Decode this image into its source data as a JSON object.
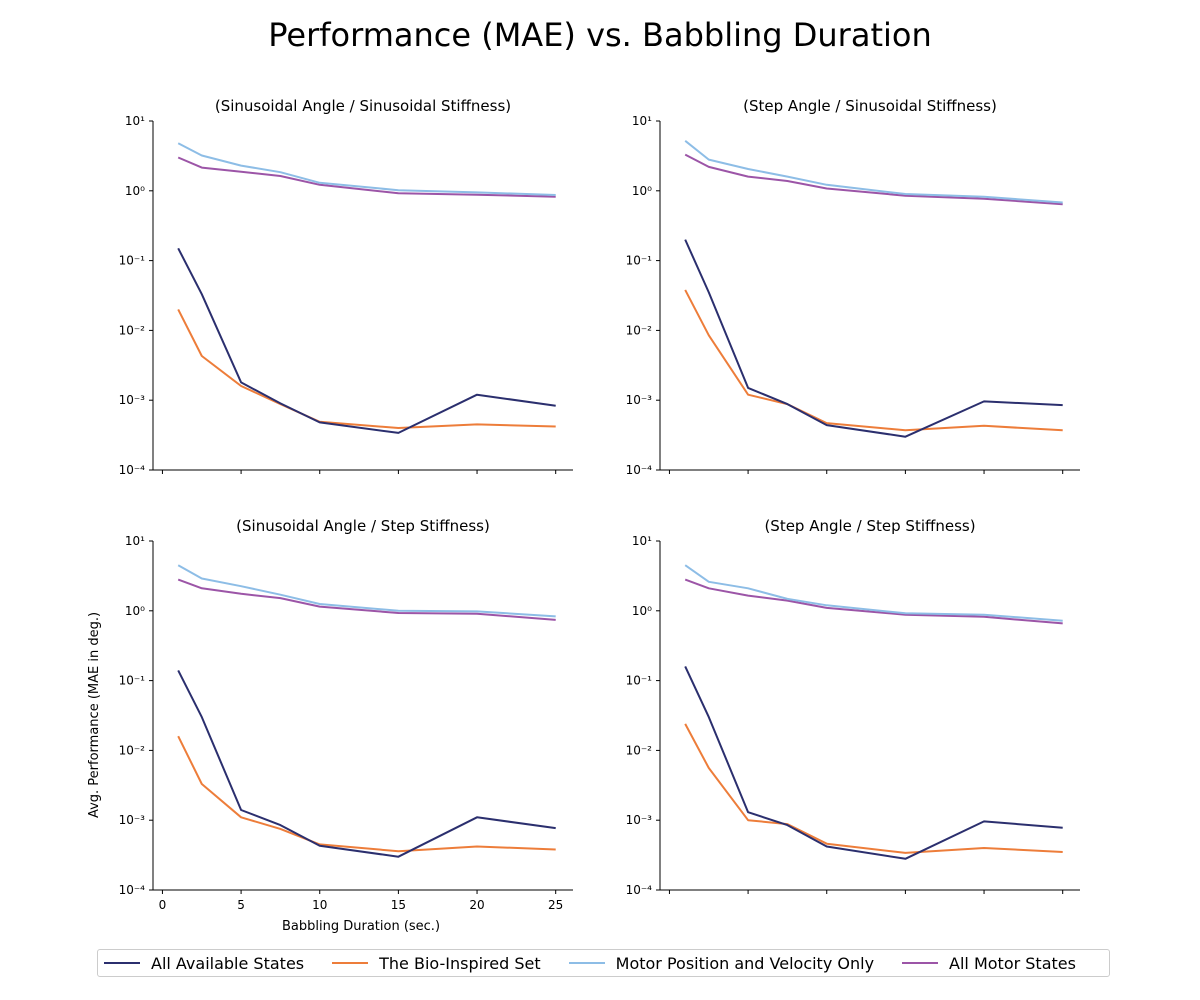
{
  "title": "Performance (MAE) vs. Babbling Duration",
  "legend_items": [
    {
      "label": "All Available States",
      "color": "#2b2f6e"
    },
    {
      "label": "The Bio-Inspired Set",
      "color": "#ed7d3a"
    },
    {
      "label": "Motor Position and Velocity Only",
      "color": "#8dbde6"
    },
    {
      "label": "All Motor States",
      "color": "#9c55a7"
    }
  ],
  "chart_data": [
    {
      "type": "line",
      "title": "(Sinusoidal Angle / Sinusoidal Stiffness)",
      "xlabel": "",
      "ylabel": "",
      "yscale": "log",
      "ylim": [
        0.0001,
        10
      ],
      "xlim": [
        -0.6,
        26.1
      ],
      "x": [
        1,
        2.5,
        5,
        7.5,
        10,
        15,
        20,
        25
      ],
      "series": [
        {
          "name": "All Available States",
          "values": [
            0.15,
            0.033,
            0.0018,
            0.0009,
            0.00048,
            0.00034,
            0.0012,
            0.00083
          ]
        },
        {
          "name": "The Bio-Inspired Set",
          "values": [
            0.02,
            0.0043,
            0.0016,
            0.00088,
            0.00049,
            0.0004,
            0.00045,
            0.00042
          ]
        },
        {
          "name": "Motor Position and Velocity Only",
          "values": [
            4.8,
            3.2,
            2.3,
            1.85,
            1.3,
            1.02,
            0.95,
            0.87
          ]
        },
        {
          "name": "All Motor States",
          "values": [
            3.0,
            2.15,
            1.87,
            1.63,
            1.22,
            0.92,
            0.88,
            0.82
          ]
        }
      ]
    },
    {
      "type": "line",
      "title": "(Step Angle / Sinusoidal Stiffness)",
      "xlabel": "",
      "ylabel": "",
      "yscale": "log",
      "ylim": [
        0.0001,
        10
      ],
      "xlim": [
        -0.6,
        26.1
      ],
      "x": [
        1,
        2.5,
        5,
        7.5,
        10,
        15,
        20,
        25
      ],
      "series": [
        {
          "name": "All Available States",
          "values": [
            0.2,
            0.035,
            0.0015,
            0.00088,
            0.00044,
            0.0003,
            0.00096,
            0.00085
          ]
        },
        {
          "name": "The Bio-Inspired Set",
          "values": [
            0.038,
            0.0085,
            0.0012,
            0.00088,
            0.00047,
            0.00037,
            0.00043,
            0.00037
          ]
        },
        {
          "name": "Motor Position and Velocity Only",
          "values": [
            5.2,
            2.8,
            2.05,
            1.6,
            1.22,
            0.9,
            0.82,
            0.68
          ]
        },
        {
          "name": "All Motor States",
          "values": [
            3.3,
            2.2,
            1.6,
            1.38,
            1.08,
            0.85,
            0.77,
            0.64
          ]
        }
      ]
    },
    {
      "type": "line",
      "title": "(Sinusoidal Angle / Step Stiffness)",
      "xlabel": "Babbling Duration (sec.)",
      "ylabel": "Avg. Performance (MAE in deg.)",
      "yscale": "log",
      "ylim": [
        0.0001,
        10
      ],
      "xlim": [
        -0.6,
        26.1
      ],
      "x": [
        1,
        2.5,
        5,
        7.5,
        10,
        15,
        20,
        25
      ],
      "series": [
        {
          "name": "All Available States",
          "values": [
            0.14,
            0.03,
            0.0014,
            0.00085,
            0.00043,
            0.0003,
            0.0011,
            0.00077
          ]
        },
        {
          "name": "The Bio-Inspired Set",
          "values": [
            0.016,
            0.0033,
            0.0011,
            0.00075,
            0.00045,
            0.00036,
            0.00042,
            0.00038
          ]
        },
        {
          "name": "Motor Position and Velocity Only",
          "values": [
            4.5,
            2.9,
            2.25,
            1.7,
            1.25,
            1.0,
            0.98,
            0.83
          ]
        },
        {
          "name": "All Motor States",
          "values": [
            2.8,
            2.1,
            1.75,
            1.52,
            1.15,
            0.93,
            0.91,
            0.74
          ]
        }
      ],
      "xticks": [
        0,
        5,
        10,
        15,
        20,
        25
      ]
    },
    {
      "type": "line",
      "title": "(Step Angle / Step Stiffness)",
      "xlabel": "",
      "ylabel": "",
      "yscale": "log",
      "ylim": [
        0.0001,
        10
      ],
      "xlim": [
        -0.6,
        26.1
      ],
      "x": [
        1,
        2.5,
        5,
        7.5,
        10,
        15,
        20,
        25
      ],
      "series": [
        {
          "name": "All Available States",
          "values": [
            0.16,
            0.03,
            0.0013,
            0.00085,
            0.00042,
            0.00028,
            0.00096,
            0.00078
          ]
        },
        {
          "name": "The Bio-Inspired Set",
          "values": [
            0.024,
            0.0056,
            0.001,
            0.00088,
            0.00046,
            0.00034,
            0.0004,
            0.00035
          ]
        },
        {
          "name": "Motor Position and Velocity Only",
          "values": [
            4.5,
            2.6,
            2.1,
            1.48,
            1.2,
            0.92,
            0.88,
            0.72
          ]
        },
        {
          "name": "All Motor States",
          "values": [
            2.8,
            2.1,
            1.65,
            1.4,
            1.1,
            0.88,
            0.82,
            0.66
          ]
        }
      ]
    }
  ]
}
